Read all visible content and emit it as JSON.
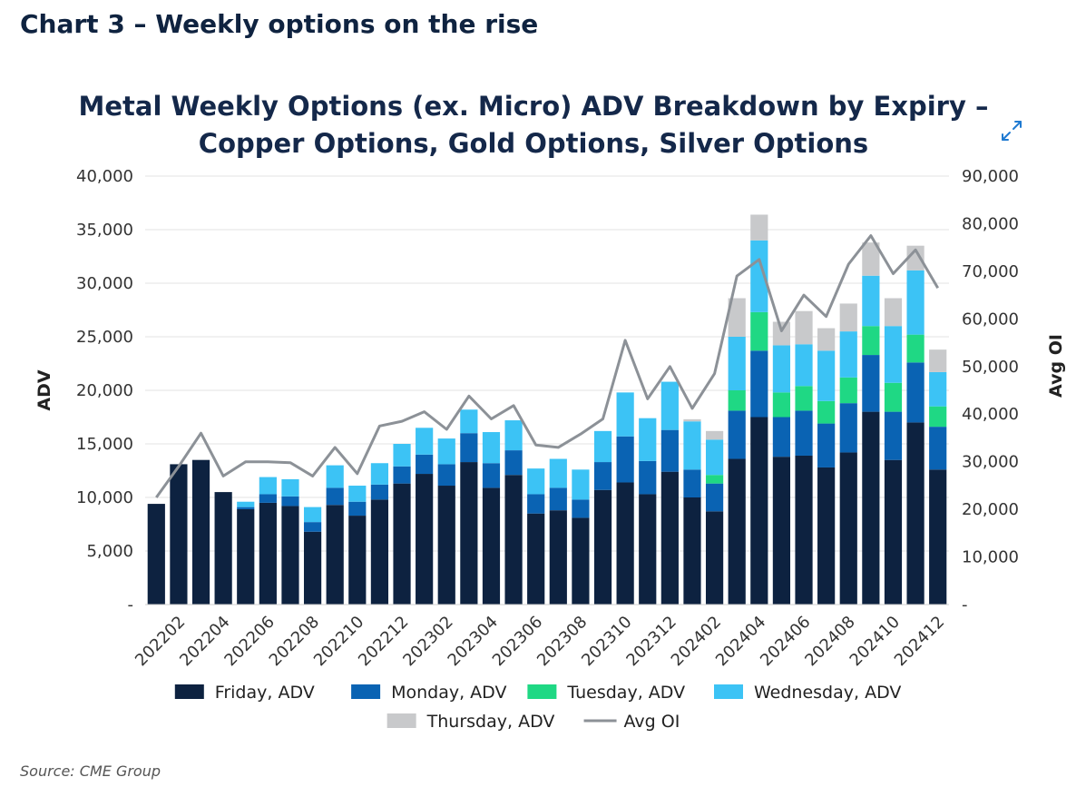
{
  "heading": "Chart 3 – Weekly options on the rise",
  "source": "Source: CME Group",
  "expand_icon": "expand-arrows-icon",
  "colors": {
    "friday": "#0d2240",
    "monday": "#0a63b3",
    "tuesday": "#1fd884",
    "wednesday": "#3cc3f5",
    "thursday": "#c8c9cb",
    "avg_oi": "#8c9197",
    "grid": "#e3e3e3",
    "expand_icon": "#1f7ad1"
  },
  "chart_data": {
    "type": "bar",
    "stacked": true,
    "title_lines": [
      "Metal Weekly Options (ex. Micro) ADV Breakdown by Expiry –",
      "Copper Options, Gold Options, Silver Options"
    ],
    "ylabel": "ADV",
    "y2label": "Avg OI",
    "ylim": [
      0,
      40000
    ],
    "y2lim": [
      0,
      90000
    ],
    "y_ticks": [
      "-",
      "5,000",
      "10,000",
      "15,000",
      "20,000",
      "25,000",
      "30,000",
      "35,000",
      "40,000"
    ],
    "y2_ticks": [
      "-",
      "10,000",
      "20,000",
      "30,000",
      "40,000",
      "50,000",
      "60,000",
      "70,000",
      "80,000",
      "90,000"
    ],
    "grid": true,
    "legend_position": "bottom",
    "x_tick_labels": [
      "202202",
      "202204",
      "202206",
      "202208",
      "202210",
      "202212",
      "202302",
      "202304",
      "202306",
      "202308",
      "202310",
      "202312",
      "202402",
      "202404",
      "202406",
      "202408",
      "202410",
      "202412"
    ],
    "categories": [
      "202201",
      "202202",
      "202203",
      "202204",
      "202205",
      "202206",
      "202207",
      "202208",
      "202209",
      "202210",
      "202211",
      "202212",
      "202301",
      "202302",
      "202303",
      "202304",
      "202305",
      "202306",
      "202307",
      "202308",
      "202309",
      "202310",
      "202311",
      "202312",
      "202401",
      "202402",
      "202403",
      "202404",
      "202405",
      "202406",
      "202407",
      "202408",
      "202409",
      "202410",
      "202411",
      "202412"
    ],
    "series": [
      {
        "name": "Friday, ADV",
        "key": "friday",
        "values": [
          9400,
          13100,
          13500,
          10500,
          8900,
          9500,
          9200,
          6800,
          9300,
          8300,
          9800,
          11300,
          12200,
          11100,
          13300,
          10900,
          12100,
          8500,
          8800,
          8100,
          10700,
          11400,
          10300,
          12400,
          10000,
          8700,
          13600,
          17500,
          13800,
          13900,
          12800,
          14200,
          18000,
          13500,
          17000,
          12600
        ]
      },
      {
        "name": "Monday, ADV",
        "key": "monday",
        "values": [
          0,
          0,
          0,
          0,
          200,
          800,
          900,
          900,
          1600,
          1300,
          1400,
          1600,
          1800,
          2000,
          2700,
          2300,
          2300,
          1800,
          2100,
          1700,
          2600,
          4300,
          3100,
          3900,
          2600,
          2600,
          4500,
          6200,
          3700,
          4200,
          4100,
          4600,
          5300,
          4500,
          5600,
          4000
        ]
      },
      {
        "name": "Tuesday, ADV",
        "key": "tuesday",
        "values": [
          0,
          0,
          0,
          0,
          0,
          0,
          0,
          0,
          0,
          0,
          0,
          0,
          0,
          0,
          0,
          0,
          0,
          0,
          0,
          0,
          0,
          0,
          0,
          0,
          0,
          800,
          1900,
          3600,
          2300,
          2300,
          2100,
          2400,
          2700,
          2700,
          2600,
          1900
        ]
      },
      {
        "name": "Wednesday, ADV",
        "key": "wednesday",
        "values": [
          0,
          0,
          0,
          0,
          500,
          1600,
          1600,
          1400,
          2100,
          1500,
          2000,
          2100,
          2500,
          2400,
          2200,
          2900,
          2800,
          2400,
          2700,
          2800,
          2900,
          4100,
          4000,
          4500,
          4500,
          3300,
          5000,
          6700,
          4400,
          3900,
          4700,
          4300,
          4700,
          5300,
          6000,
          3200
        ]
      },
      {
        "name": "Thursday, ADV",
        "key": "thursday",
        "values": [
          0,
          0,
          0,
          0,
          0,
          0,
          0,
          0,
          0,
          0,
          0,
          0,
          0,
          0,
          0,
          0,
          0,
          0,
          0,
          0,
          0,
          0,
          0,
          0,
          200,
          800,
          3600,
          2400,
          2200,
          3100,
          2100,
          2600,
          3100,
          2600,
          2300,
          2100
        ]
      },
      {
        "name": "Avg OI",
        "key": "avg_oi",
        "type": "line",
        "axis": "right",
        "values": [
          22500,
          29000,
          36000,
          27000,
          30000,
          30000,
          29800,
          27000,
          33000,
          27500,
          37500,
          38500,
          40500,
          36800,
          43800,
          39000,
          41800,
          33500,
          33000,
          35800,
          39000,
          55500,
          43200,
          50000,
          41200,
          48500,
          69000,
          72500,
          57500,
          65000,
          60500,
          71500,
          77500,
          69500,
          74500,
          66500
        ]
      }
    ]
  },
  "legend_rows": [
    [
      {
        "label": "Friday, ADV",
        "key": "friday"
      },
      {
        "label": "Monday, ADV",
        "key": "monday"
      },
      {
        "label": "Tuesday, ADV",
        "key": "tuesday"
      },
      {
        "label": "Wednesday, ADV",
        "key": "wednesday"
      }
    ],
    [
      {
        "label": "Thursday, ADV",
        "key": "thursday"
      },
      {
        "label": "Avg OI",
        "key": "avg_oi",
        "line": true
      }
    ]
  ]
}
